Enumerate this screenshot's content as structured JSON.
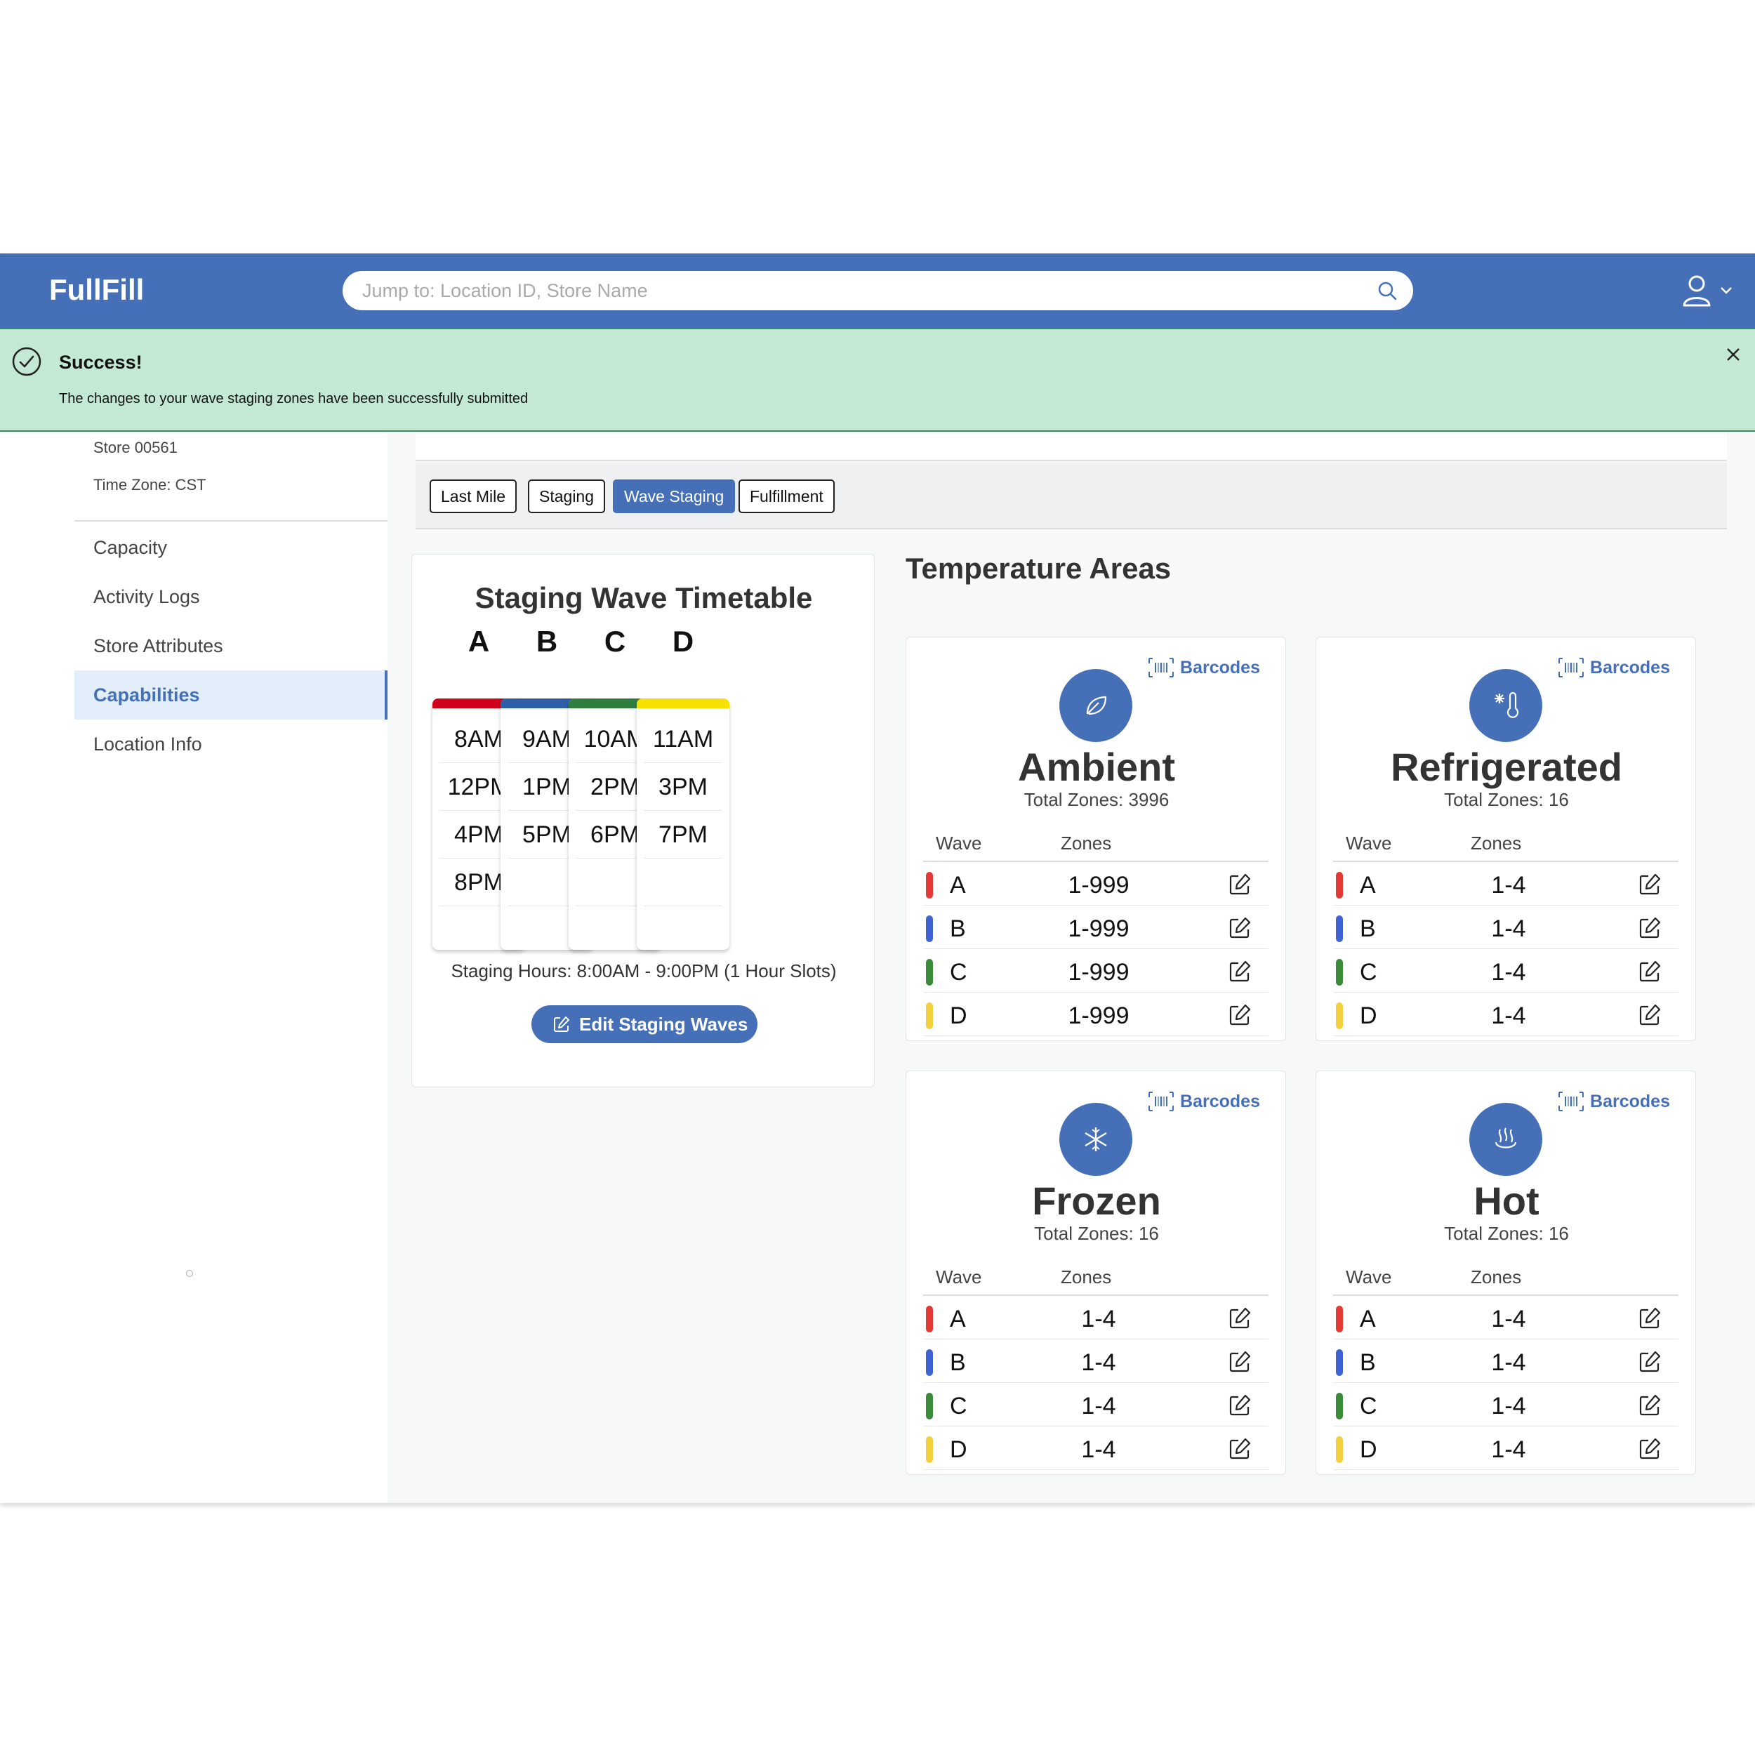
{
  "app": {
    "title": "FullFill"
  },
  "search": {
    "placeholder": "Jump to: Location ID, Store Name"
  },
  "icons": {
    "search": "search-icon",
    "user": "user-icon",
    "chevron": "chevron-down-icon",
    "success": "check-circle-icon",
    "close": "close-icon",
    "edit": "edit-icon",
    "barcode": "barcode-icon"
  },
  "alert": {
    "title": "Success!",
    "message": "The changes to your wave staging zones have been successfully submitted"
  },
  "store": {
    "id": "Store 00561",
    "timezone": "Time Zone: CST"
  },
  "sidebar": {
    "items": [
      {
        "label": "Capacity",
        "active": false
      },
      {
        "label": "Activity Logs",
        "active": false
      },
      {
        "label": "Store Attributes",
        "active": false
      },
      {
        "label": "Capabilities",
        "active": true
      },
      {
        "label": "Location Info",
        "active": false
      }
    ]
  },
  "tabs": [
    {
      "label": "Last Mile",
      "active": false
    },
    {
      "label": "Staging",
      "active": false
    },
    {
      "label": "Wave Staging",
      "active": true
    },
    {
      "label": "Fulfillment",
      "active": false
    }
  ],
  "timetable": {
    "title": "Staging Wave Timetable",
    "waves": [
      {
        "name": "A",
        "color": "#d0021b",
        "slots": [
          "8AM",
          "12PM",
          "4PM",
          "8PM",
          ""
        ]
      },
      {
        "name": "B",
        "color": "#2e5ea8",
        "slots": [
          "9AM",
          "1PM",
          "5PM",
          "",
          ""
        ]
      },
      {
        "name": "C",
        "color": "#2e7d3e",
        "slots": [
          "10AM",
          "2PM",
          "6PM",
          "",
          ""
        ]
      },
      {
        "name": "D",
        "color": "#f5e000",
        "slots": [
          "11AM",
          "3PM",
          "7PM",
          "",
          ""
        ]
      }
    ],
    "hours": "Staging Hours: 8:00AM - 9:00PM (1 Hour Slots)",
    "edit_label": "Edit Staging Waves"
  },
  "temperature": {
    "title": "Temperature Areas",
    "wave_colors": {
      "A": "#e53935",
      "B": "#3f63d4",
      "C": "#3a8c3a",
      "D": "#f4d03f"
    },
    "areas": [
      {
        "name": "Ambient",
        "icon": "leaf-icon",
        "total": "Total Zones: 3996",
        "barcodes": "Barcodes",
        "wave_header": "Wave",
        "zones_header": "Zones",
        "rows": [
          {
            "wave": "A",
            "zones": "1-999"
          },
          {
            "wave": "B",
            "zones": "1-999"
          },
          {
            "wave": "C",
            "zones": "1-999"
          },
          {
            "wave": "D",
            "zones": "1-999"
          }
        ]
      },
      {
        "name": "Refrigerated",
        "icon": "thermometer-snow-icon",
        "total": "Total Zones: 16",
        "barcodes": "Barcodes",
        "wave_header": "Wave",
        "zones_header": "Zones",
        "rows": [
          {
            "wave": "A",
            "zones": "1-4"
          },
          {
            "wave": "B",
            "zones": "1-4"
          },
          {
            "wave": "C",
            "zones": "1-4"
          },
          {
            "wave": "D",
            "zones": "1-4"
          }
        ]
      },
      {
        "name": "Frozen",
        "icon": "snowflake-icon",
        "total": "Total Zones: 16",
        "barcodes": "Barcodes",
        "wave_header": "Wave",
        "zones_header": "Zones",
        "rows": [
          {
            "wave": "A",
            "zones": "1-4"
          },
          {
            "wave": "B",
            "zones": "1-4"
          },
          {
            "wave": "C",
            "zones": "1-4"
          },
          {
            "wave": "D",
            "zones": "1-4"
          }
        ]
      },
      {
        "name": "Hot",
        "icon": "steam-icon",
        "total": "Total Zones: 16",
        "barcodes": "Barcodes",
        "wave_header": "Wave",
        "zones_header": "Zones",
        "rows": [
          {
            "wave": "A",
            "zones": "1-4"
          },
          {
            "wave": "B",
            "zones": "1-4"
          },
          {
            "wave": "C",
            "zones": "1-4"
          },
          {
            "wave": "D",
            "zones": "1-4"
          }
        ]
      }
    ]
  }
}
